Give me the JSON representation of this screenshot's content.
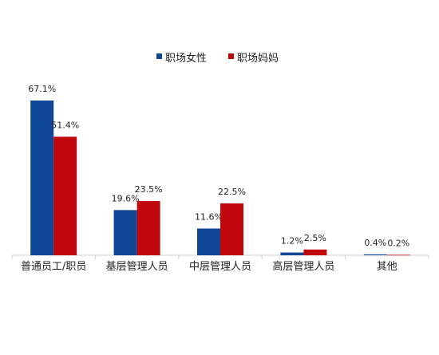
{
  "chart_data": {
    "type": "bar",
    "categories": [
      "普通员工/职员",
      "基层管理人员",
      "中层管理人员",
      "高层管理人员",
      "其他"
    ],
    "series": [
      {
        "name": "职场女性",
        "color": "#0F4696",
        "values": [
          67.1,
          19.6,
          11.6,
          1.2,
          0.4
        ],
        "labels": [
          "67.1%",
          "19.6%",
          "11.6%",
          "1.2%",
          "0.4%"
        ]
      },
      {
        "name": "职场妈妈",
        "color": "#C0070B",
        "values": [
          51.4,
          23.5,
          22.5,
          2.5,
          0.2
        ],
        "labels": [
          "51.4%",
          "23.5%",
          "22.5%",
          "2.5%",
          "0.2%"
        ]
      }
    ],
    "ylim": [
      0,
      70
    ],
    "legend_position": "top",
    "grid": false
  }
}
